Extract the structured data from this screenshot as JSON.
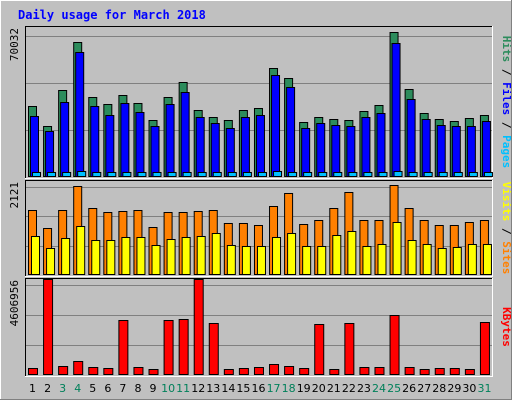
{
  "chart_data": {
    "type": "bar",
    "title": "Daily usage for March 2018",
    "days": [
      "1",
      "2",
      "3",
      "4",
      "5",
      "6",
      "7",
      "8",
      "9",
      "10",
      "11",
      "12",
      "13",
      "14",
      "15",
      "16",
      "17",
      "18",
      "19",
      "20",
      "21",
      "22",
      "23",
      "24",
      "25",
      "26",
      "27",
      "28",
      "29",
      "30",
      "31"
    ],
    "weekend_days": [
      "3",
      "4",
      "10",
      "11",
      "17",
      "18",
      "24",
      "25",
      "31"
    ],
    "panels": [
      {
        "name": "pages-files-hits",
        "ymax_label": "70032",
        "ymax": 70032,
        "side_labels": [
          "Pages",
          "Files",
          "Hits"
        ],
        "series": [
          {
            "name": "Hits",
            "color": "#2c8c5c",
            "values": [
              33000,
              24000,
              40500,
              63000,
              37500,
              34000,
              38500,
              34500,
              26500,
              37500,
              44500,
              31500,
              28000,
              26500,
              31500,
              32000,
              51000,
              46000,
              25500,
              28000,
              27000,
              26500,
              31000,
              33500,
              67500,
              41000,
              30000,
              27000,
              26000,
              27500,
              29000
            ]
          },
          {
            "name": "Files",
            "color": "#0000ff",
            "values": [
              28500,
              21500,
              35000,
              58500,
              33000,
              29000,
              34500,
              30500,
              24000,
              34000,
              39500,
              28000,
              25000,
              23000,
              28000,
              29000,
              47500,
              42000,
              23000,
              25000,
              24500,
              24000,
              28000,
              30000,
              62500,
              36500,
              27000,
              24500,
              24000,
              24000,
              26000
            ]
          },
          {
            "name": "Pages",
            "color": "#00c0ff",
            "values": [
              2500,
              2200,
              2400,
              2600,
              2400,
              2300,
              2400,
              2300,
              2200,
              2400,
              2500,
              2300,
              2200,
              2200,
              2300,
              2300,
              2600,
              2500,
              2200,
              2300,
              2200,
              2200,
              2300,
              2300,
              2700,
              2400,
              2300,
              2200,
              2200,
              2200,
              2300
            ]
          }
        ]
      },
      {
        "name": "sites-visits",
        "ymax_label": "2121",
        "ymax": 2121,
        "side_labels": [
          "Sites",
          "Visits"
        ],
        "series": [
          {
            "name": "Visits",
            "color": "#ff8000",
            "values": [
              1460,
              1070,
              1460,
              2000,
              1520,
              1420,
              1450,
              1460,
              1080,
              1420,
              1420,
              1440,
              1460,
              1180,
              1170,
              1130,
              1550,
              1860,
              1140,
              1230,
              1510,
              1880,
              1230,
              1240,
              2030,
              1520,
              1240,
              1120,
              1130,
              1200,
              1230
            ]
          },
          {
            "name": "Sites",
            "color": "#ffff00",
            "values": [
              880,
              620,
              840,
              1110,
              790,
              800,
              860,
              850,
              680,
              810,
              850,
              890,
              940,
              680,
              660,
              660,
              860,
              940,
              650,
              650,
              900,
              1000,
              650,
              710,
              1190,
              800,
              700,
              620,
              630,
              690,
              700
            ]
          }
        ]
      },
      {
        "name": "kbytes",
        "ymax_label": "4606956",
        "ymax": 4606956,
        "side_labels": [
          "KBytes"
        ],
        "series": [
          {
            "name": "KBytes",
            "color": "#ff0000",
            "values": [
              320000,
              4590000,
              440000,
              680000,
              380000,
              340000,
              2650000,
              380000,
              310000,
              2650000,
              2700000,
              4606956,
              2500000,
              310000,
              330000,
              380000,
              530000,
              450000,
              330000,
              2450000,
              310000,
              2500000,
              370000,
              380000,
              2900000,
              380000,
              310000,
              320000,
              330000,
              310000,
              2550000
            ]
          }
        ]
      }
    ]
  }
}
